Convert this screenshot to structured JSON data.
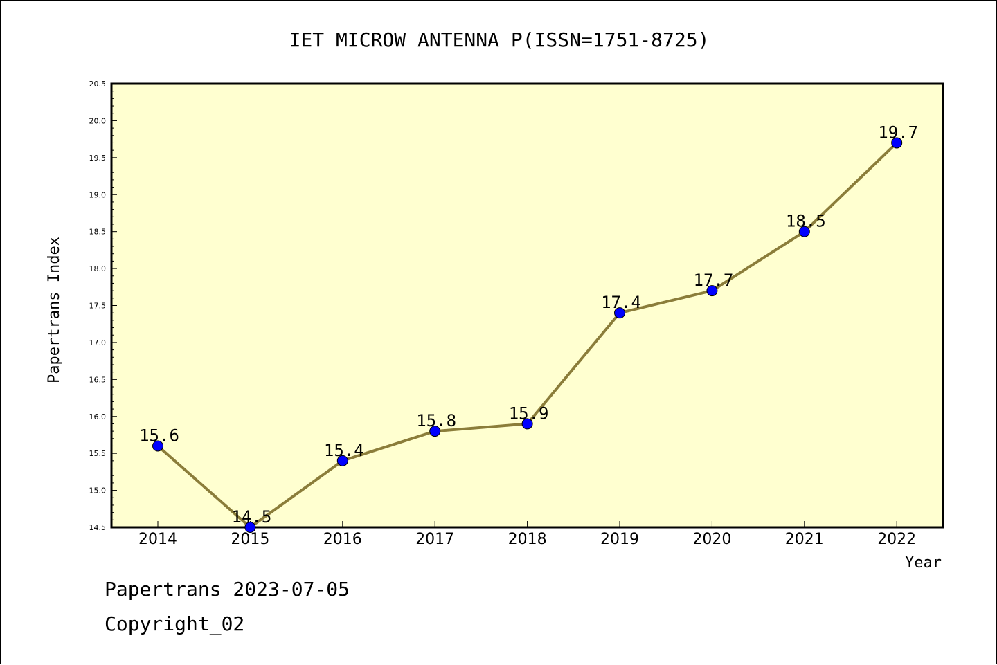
{
  "chart_data": {
    "type": "line",
    "title": "IET MICROW ANTENNA P(ISSN=1751-8725)",
    "xlabel": "Year",
    "ylabel": "Papertrans Index",
    "categories": [
      "2014",
      "2015",
      "2016",
      "2017",
      "2018",
      "2019",
      "2020",
      "2021",
      "2022"
    ],
    "series": [
      {
        "values": [
          15.6,
          14.5,
          15.4,
          15.8,
          15.9,
          17.4,
          17.7,
          18.5,
          19.7
        ]
      }
    ],
    "data_labels": [
      "15.6",
      "14.5",
      "15.4",
      "15.8",
      "15.9",
      "17.4",
      "17.7",
      "18.5",
      "19.7"
    ],
    "ylim": [
      14.5,
      20.5
    ],
    "yticks": [
      "14.5",
      "15.0",
      "15.5",
      "16.0",
      "16.5",
      "17.0",
      "17.5",
      "18.0",
      "18.5",
      "19.0",
      "19.5",
      "20.0",
      "20.5"
    ],
    "grid": false,
    "colors": {
      "plot_background": "#ffffd0",
      "line": "#8b7d3a",
      "marker": "#0000ff"
    }
  },
  "footer": {
    "line1": "Papertrans 2023-07-05",
    "line2": "Copyright_02"
  }
}
